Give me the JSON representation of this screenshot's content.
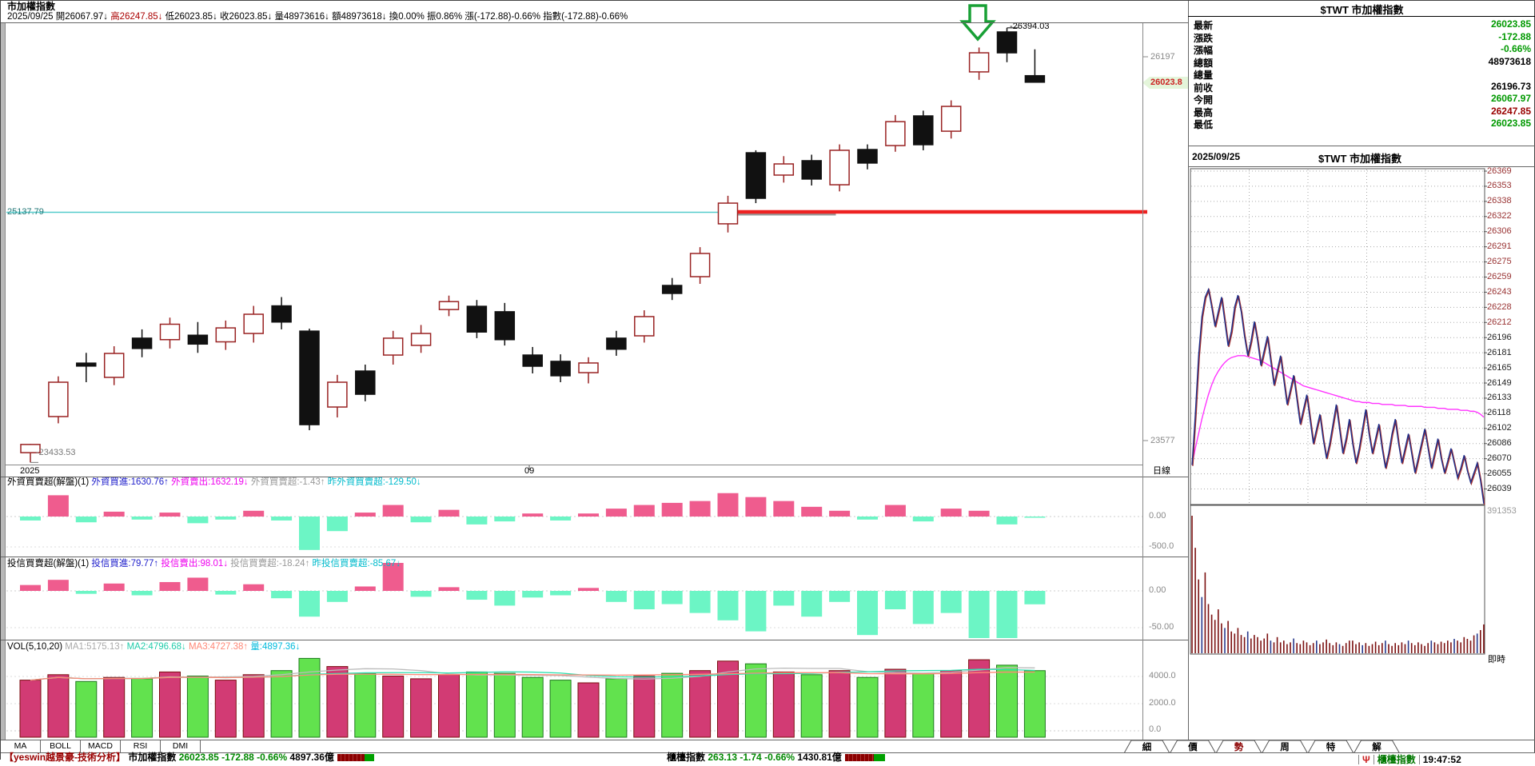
{
  "header": {
    "title": "市加權指數",
    "info_segments": [
      {
        "t": "2025/09/25 ",
        "c": "#000000"
      },
      {
        "t": "開26067.97↓ ",
        "c": "#000000"
      },
      {
        "t": "高26247.85↓ ",
        "c": "#aa0000"
      },
      {
        "t": "低26023.85↓ ",
        "c": "#000000"
      },
      {
        "t": "收26023.85↓ ",
        "c": "#000000"
      },
      {
        "t": "量48973616↓ ",
        "c": "#000000"
      },
      {
        "t": "額48973618↓ ",
        "c": "#000000"
      },
      {
        "t": "換0.00% ",
        "c": "#000000"
      },
      {
        "t": "振0.86% ",
        "c": "#000000"
      },
      {
        "t": "漲(-172.88)-0.66% ",
        "c": "#000000"
      },
      {
        "t": "指數(-172.88)-0.66%",
        "c": "#000000"
      }
    ]
  },
  "main_chart": {
    "support_label": "25137.79",
    "low_label": "-23433.53",
    "high_label": "-26394.03",
    "axis_26197": "26197",
    "axis_tag": "26023.8",
    "axis_23577": "23577",
    "period_label": "日線",
    "x_year": "2025",
    "x_month": "09",
    "colors": {
      "up": "#992222",
      "down": "#111111",
      "support_line": "#55cccc",
      "breakout_line": "#ee2222",
      "gray_line": "#999999",
      "arrow": "#18a035"
    }
  },
  "panel_foreign": {
    "segments": [
      {
        "t": "外資買賣超(解盤)(1) ",
        "c": "#000000"
      },
      {
        "t": "外資買進:1630.76↑ ",
        "c": "#2222cc"
      },
      {
        "t": "外資賣出:1632.19↓ ",
        "c": "#ee00ee"
      },
      {
        "t": "外資買賣超:-1.43↑ ",
        "c": "#999999"
      },
      {
        "t": "昨外資買賣超:-129.50↓",
        "c": "#00bbcc"
      }
    ],
    "zero_label": "0.00",
    "neg_label": "-500.0"
  },
  "panel_trust": {
    "segments": [
      {
        "t": "投信買賣超(解盤)(1) ",
        "c": "#000000"
      },
      {
        "t": "投信買進:79.77↑ ",
        "c": "#2222cc"
      },
      {
        "t": "投信賣出:98.01↓ ",
        "c": "#ee00ee"
      },
      {
        "t": "投信買賣超:-18.24↑ ",
        "c": "#999999"
      },
      {
        "t": "昨投信買賣超:-85.67↓",
        "c": "#00bbcc"
      }
    ],
    "zero_label": "0.00",
    "neg_label": "-50.00"
  },
  "panel_vol": {
    "segments": [
      {
        "t": "VOL(5,10,20) ",
        "c": "#000000"
      },
      {
        "t": "MA1:5175.13↑ ",
        "c": "#aaaaaa"
      },
      {
        "t": "MA2:4796.68↓ ",
        "c": "#22ccaa"
      },
      {
        "t": "MA3:4727.38↑ ",
        "c": "#ff8877"
      },
      {
        "t": "量:4897.36↓",
        "c": "#00bbdd"
      }
    ],
    "lbl_4000": "4000.0",
    "lbl_2000": "2000.0",
    "lbl_0": "0.0"
  },
  "quote": {
    "title": "$TWT 市加權指數",
    "rows": [
      {
        "label": "最新",
        "value": "26023.85",
        "color": "#009900"
      },
      {
        "label": "漲跌",
        "value": "-172.88",
        "color": "#009900"
      },
      {
        "label": "漲幅",
        "value": "-0.66%",
        "color": "#009900"
      },
      {
        "label": "總額",
        "value": "48973618",
        "color": "#000000"
      },
      {
        "label": "總量",
        "value": "",
        "color": "#000000"
      },
      {
        "label": "前收",
        "value": "26196.73",
        "color": "#000000"
      },
      {
        "label": "今開",
        "value": "26067.97",
        "color": "#009900"
      },
      {
        "label": "最高",
        "value": "26247.85",
        "color": "#990000"
      },
      {
        "label": "最低",
        "value": "26023.85",
        "color": "#009900"
      }
    ]
  },
  "intraday_panel": {
    "date": "2025/09/25",
    "title": "$TWT 市加權指數",
    "volume_max_label": "391353",
    "realtime_label": "即時"
  },
  "tabs_left": [
    "MA",
    "BOLL",
    "MACD",
    "RSI",
    "DMI"
  ],
  "tabs_right": [
    {
      "label": "細",
      "selected": false
    },
    {
      "label": "價",
      "selected": false
    },
    {
      "label": "勢",
      "selected": true
    },
    {
      "label": "周",
      "selected": false
    },
    {
      "label": "特",
      "selected": false
    },
    {
      "label": "解",
      "selected": false
    }
  ],
  "status": {
    "left_segments": [
      {
        "t": "【yeswin越景豪-技術分析】",
        "c": "#990000",
        "b": 1
      },
      {
        "t": " 市加權指數 ",
        "c": "#000000",
        "b": 1
      },
      {
        "t": "26023.85 -172.88 -0.66%",
        "c": "#008800",
        "b": 1
      },
      {
        "t": " 4897.36億",
        "c": "#000000",
        "b": 1
      }
    ],
    "mid_segments": [
      {
        "t": "櫃檯指數 ",
        "c": "#000000",
        "b": 1
      },
      {
        "t": "263.13 -1.74 -0.66%",
        "c": "#008800",
        "b": 1
      },
      {
        "t": " 1430.81億",
        "c": "#000000",
        "b": 1
      }
    ],
    "right_index_label": "櫃檯指數",
    "time": "19:47:52"
  },
  "chart_data": {
    "type": "candlestick",
    "daily": {
      "ohlc": [
        [
          23500,
          23560,
          23433.53,
          23556
        ],
        [
          23746,
          24020,
          23700,
          23980
        ],
        [
          24110,
          24180,
          23980,
          24090
        ],
        [
          24013,
          24225,
          23960,
          24176
        ],
        [
          24280,
          24340,
          24150,
          24210
        ],
        [
          24270,
          24420,
          24210,
          24375
        ],
        [
          24300,
          24390,
          24180,
          24240
        ],
        [
          24255,
          24400,
          24200,
          24350
        ],
        [
          24312,
          24500,
          24250,
          24443
        ],
        [
          24500,
          24560,
          24340,
          24390
        ],
        [
          24328,
          24345,
          23653,
          23691
        ],
        [
          23811,
          24030,
          23740,
          23980
        ],
        [
          24056,
          24100,
          23850,
          23898
        ],
        [
          24165,
          24330,
          24100,
          24280
        ],
        [
          24231,
          24370,
          24180,
          24312
        ],
        [
          24475,
          24570,
          24430,
          24529
        ],
        [
          24497,
          24540,
          24280,
          24322
        ],
        [
          24460,
          24520,
          24230,
          24270
        ],
        [
          24165,
          24220,
          24040,
          24089
        ],
        [
          24122,
          24170,
          23980,
          24024
        ],
        [
          24045,
          24150,
          23972,
          24111
        ],
        [
          24280,
          24330,
          24160,
          24205
        ],
        [
          24296,
          24470,
          24250,
          24427
        ],
        [
          24639,
          24690,
          24540,
          24585
        ],
        [
          24699,
          24900,
          24650,
          24857
        ],
        [
          25059,
          25250,
          25000,
          25200
        ],
        [
          25543,
          25560,
          25200,
          25233
        ],
        [
          25391,
          25520,
          25340,
          25467
        ],
        [
          25489,
          25530,
          25320,
          25364
        ],
        [
          25325,
          25600,
          25280,
          25560
        ],
        [
          25565,
          25600,
          25430,
          25473
        ],
        [
          25592,
          25800,
          25550,
          25755
        ],
        [
          25794,
          25830,
          25560,
          25598
        ],
        [
          25690,
          25900,
          25640,
          25859
        ],
        [
          26094,
          26260,
          26040,
          26224
        ],
        [
          26366,
          26394.03,
          26160,
          26224
        ],
        [
          26067.97,
          26247.85,
          26023.85,
          26023.85
        ]
      ],
      "foreign": [
        -65,
        350,
        -95,
        80,
        -50,
        65,
        -110,
        -50,
        95,
        -65,
        -550,
        -240,
        65,
        190,
        -95,
        110,
        -130,
        -80,
        50,
        -65,
        50,
        130,
        190,
        225,
        255,
        385,
        320,
        255,
        160,
        95,
        -50,
        190,
        -80,
        130,
        95,
        -129.5,
        -1.43
      ],
      "trust": [
        8,
        15,
        -4,
        10,
        -6,
        12,
        18,
        -5,
        9,
        -10,
        -35,
        -15,
        6,
        42,
        -8,
        5,
        -12,
        -20,
        -9,
        -6,
        4,
        -15,
        -25,
        -18,
        -30,
        -40,
        -55,
        -20,
        -35,
        -15,
        -60,
        -25,
        -45,
        -30,
        -70,
        -85.67,
        -18.24
      ],
      "volume": [
        4200,
        4600,
        4100,
        4400,
        4300,
        4800,
        4500,
        4200,
        4600,
        4900,
        5800,
        5200,
        4700,
        4500,
        4300,
        4600,
        4800,
        4700,
        4400,
        4200,
        4000,
        4300,
        4500,
        4700,
        4900,
        5600,
        5400,
        4800,
        4600,
        4900,
        4400,
        5000,
        4700,
        4900,
        5700,
        5300,
        4897.36
      ],
      "support_line": 25137.79
    },
    "intraday": {
      "prev_close": 26196.73,
      "y_labels": [
        26369,
        26353,
        26338,
        26322,
        26306,
        26291,
        26275,
        26259,
        26243,
        26228,
        26212,
        26196,
        26181,
        26165,
        26149,
        26133,
        26118,
        26102,
        26086,
        26070,
        26055,
        26039
      ],
      "price": [
        26068,
        26120,
        26180,
        26220,
        26240,
        26247.85,
        26230,
        26210,
        26225,
        26240,
        26215,
        26190,
        26205,
        26230,
        26242,
        26225,
        26200,
        26180,
        26195,
        26215,
        26195,
        26170,
        26185,
        26200,
        26175,
        26150,
        26165,
        26180,
        26155,
        26130,
        26145,
        26160,
        26135,
        26110,
        26125,
        26140,
        26115,
        26090,
        26105,
        26120,
        26095,
        26075,
        26090,
        26110,
        26130,
        26105,
        26080,
        26095,
        26115,
        26090,
        26070,
        26085,
        26105,
        26125,
        26100,
        26080,
        26095,
        26110,
        26085,
        26065,
        26080,
        26100,
        26115,
        26090,
        26070,
        26085,
        26100,
        26080,
        26060,
        26075,
        26090,
        26105,
        26085,
        26065,
        26080,
        26095,
        26075,
        26060,
        26072,
        26085,
        26070,
        26055,
        26065,
        26078,
        26062,
        26050,
        26060,
        26070,
        26052,
        26023.85
      ],
      "avg": [
        26068,
        26085,
        26100,
        26115,
        26128,
        26140,
        26150,
        26158,
        26164,
        26169,
        26173,
        26176,
        26178,
        26179,
        26180,
        26180,
        26180,
        26179,
        26178,
        26177,
        26176,
        26175,
        26173,
        26171,
        26169,
        26167,
        26165,
        26163,
        26161,
        26159,
        26157,
        26155,
        26153,
        26151,
        26149,
        26148,
        26147,
        26146,
        26145,
        26144,
        26143,
        26142,
        26141,
        26140,
        26139,
        26138,
        26137,
        26136,
        26135,
        26134,
        26133,
        26133,
        26132,
        26132,
        26132,
        26131,
        26131,
        26131,
        26130,
        26130,
        26130,
        26130,
        26129,
        26129,
        26129,
        26129,
        26128,
        26128,
        26128,
        26128,
        26128,
        26127,
        26127,
        26127,
        26127,
        26126,
        26126,
        26126,
        26125,
        26125,
        26125,
        26125,
        26124,
        26124,
        26124,
        26123,
        26123,
        26122,
        26120,
        26117
      ],
      "volume": [
        391353,
        300000,
        210000,
        160000,
        230000,
        140000,
        110000,
        95000,
        125000,
        85000,
        72000,
        92000,
        62000,
        56000,
        72000,
        52000,
        46000,
        62000,
        42000,
        52000,
        46000,
        36000,
        42000,
        56000,
        36000,
        31000,
        46000,
        31000,
        36000,
        26000,
        31000,
        42000,
        29000,
        26000,
        36000,
        31000,
        23000,
        29000,
        36000,
        26000,
        31000,
        39000,
        29000,
        23000,
        31000,
        26000,
        21000,
        29000,
        36000,
        36000,
        26000,
        31000,
        23000,
        29000,
        21000,
        26000,
        33000,
        23000,
        29000,
        36000,
        26000,
        21000,
        29000,
        23000,
        31000,
        26000,
        36000,
        29000,
        23000,
        31000,
        26000,
        21000,
        29000,
        36000,
        31000,
        26000,
        33000,
        29000,
        36000,
        31000,
        41000,
        36000,
        31000,
        46000,
        41000,
        36000,
        51000,
        56000,
        66000,
        82000
      ],
      "volume_max": 391353
    }
  }
}
